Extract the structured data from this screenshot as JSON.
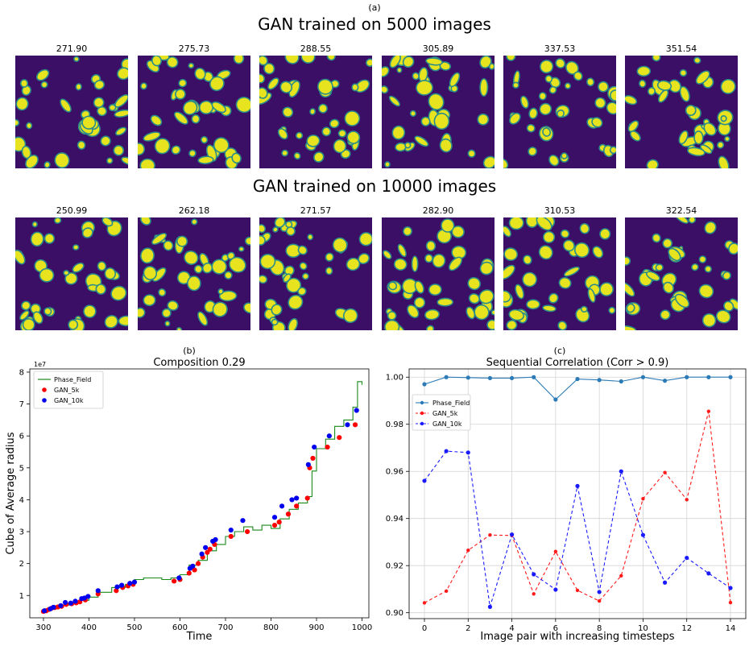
{
  "figure": {
    "label_a": "(a)",
    "label_b": "(b)",
    "label_c": "(c)",
    "row1_title": "GAN trained on 5000 images",
    "row2_title": "GAN trained on 10000 images",
    "row1_scores": [
      "271.90",
      "275.73",
      "288.55",
      "305.89",
      "337.53",
      "351.54"
    ],
    "row2_scores": [
      "250.99",
      "262.18",
      "271.57",
      "282.90",
      "310.53",
      "322.54"
    ]
  },
  "colors": {
    "field_background": "#3b0f66",
    "field_halo": "#2a8c8a",
    "field_particle": "#e8e31f",
    "phase_field_line": "#1a8a1a",
    "gan_5k": "#ff0000",
    "gan_10k": "#0000ee",
    "corr_phase_field": "#2c7bb6",
    "corr_gan_5k": "#ff1a1a",
    "corr_gan_10k": "#1a1aff"
  },
  "chart_data": [
    {
      "type": "line",
      "title": "Composition 0.29",
      "xlabel": "Time",
      "ylabel": "Cube of Average radius",
      "y_scale_label": "1e7",
      "xlim": [
        270,
        1015
      ],
      "ylim": [
        0.3,
        8.1
      ],
      "xticks": [
        300,
        400,
        500,
        600,
        700,
        800,
        900,
        1000
      ],
      "yticks": [
        1,
        2,
        3,
        4,
        5,
        6,
        7,
        8
      ],
      "legend_position": "top-left",
      "grid": false,
      "series": [
        {
          "name": "Phase_Field",
          "kind": "line",
          "x": [
            300,
            320,
            340,
            360,
            380,
            400,
            420,
            450,
            480,
            500,
            520,
            560,
            580,
            600,
            620,
            640,
            660,
            680,
            700,
            720,
            740,
            760,
            780,
            800,
            820,
            840,
            860,
            880,
            890,
            900,
            920,
            940,
            960,
            980,
            990,
            1000
          ],
          "y": [
            0.55,
            0.62,
            0.7,
            0.78,
            0.85,
            0.95,
            1.1,
            1.25,
            1.35,
            1.5,
            1.55,
            1.5,
            1.55,
            1.65,
            1.95,
            2.1,
            2.4,
            2.6,
            2.85,
            3.0,
            3.15,
            3.05,
            3.2,
            3.1,
            3.4,
            3.7,
            3.9,
            4.1,
            4.9,
            5.6,
            5.9,
            6.3,
            6.5,
            6.9,
            7.7,
            7.6
          ]
        },
        {
          "name": "GAN_5k",
          "kind": "scatter",
          "x": [
            300,
            306,
            312,
            318,
            325,
            332,
            340,
            350,
            362,
            372,
            380,
            392,
            420,
            460,
            474,
            486,
            497,
            587,
            600,
            620,
            632,
            640,
            650,
            660,
            666,
            676,
            712,
            748,
            808,
            818,
            838,
            856,
            880,
            885,
            892,
            924,
            950,
            985
          ],
          "y": [
            0.5,
            0.52,
            0.56,
            0.6,
            0.62,
            0.64,
            0.66,
            0.72,
            0.74,
            0.77,
            0.8,
            0.86,
            1.05,
            1.15,
            1.25,
            1.3,
            1.35,
            1.45,
            1.5,
            1.7,
            1.8,
            2.0,
            2.2,
            2.35,
            2.45,
            2.6,
            2.85,
            3.0,
            3.2,
            3.3,
            3.55,
            3.8,
            4.05,
            5.0,
            5.3,
            5.65,
            5.95,
            6.35
          ]
        },
        {
          "name": "GAN_10k",
          "kind": "scatter",
          "x": [
            302,
            315,
            322,
            338,
            348,
            360,
            370,
            384,
            390,
            398,
            420,
            462,
            472,
            490,
            500,
            598,
            622,
            628,
            648,
            656,
            672,
            678,
            712,
            738,
            808,
            824,
            846,
            856,
            882,
            895,
            928,
            968,
            988
          ],
          "y": [
            0.52,
            0.58,
            0.63,
            0.68,
            0.78,
            0.76,
            0.82,
            0.9,
            0.92,
            0.97,
            1.15,
            1.27,
            1.32,
            1.38,
            1.42,
            1.55,
            1.85,
            1.92,
            2.3,
            2.5,
            2.7,
            2.75,
            3.05,
            3.35,
            3.45,
            3.8,
            4.0,
            4.05,
            5.1,
            5.65,
            6.0,
            6.35,
            6.8
          ]
        }
      ]
    },
    {
      "type": "line",
      "title": "Sequential Correlation (Corr > 0.9)",
      "xlabel": "Image pair with increasing timesteps",
      "ylabel": "",
      "xlim": [
        -0.7,
        14.7
      ],
      "ylim": [
        0.8975,
        1.0035
      ],
      "xticks": [
        0,
        2,
        4,
        6,
        8,
        10,
        12,
        14
      ],
      "yticks": [
        "0.90",
        "0.92",
        "0.94",
        "0.96",
        "0.98",
        "1.00"
      ],
      "legend_position": "upper-left",
      "grid": true,
      "x": [
        0,
        1,
        2,
        3,
        4,
        5,
        6,
        7,
        8,
        9,
        10,
        11,
        12,
        13,
        14
      ],
      "series": [
        {
          "name": "Phase_Field",
          "style": "solid",
          "values": [
            0.997,
            1.0,
            0.9998,
            0.9996,
            0.9996,
            1.0,
            0.9905,
            0.9992,
            0.9988,
            0.9982,
            1.0,
            0.9985,
            1.0,
            1.0,
            1.0
          ]
        },
        {
          "name": "GAN_5k",
          "style": "dashed",
          "values": [
            0.9042,
            0.9092,
            0.9265,
            0.933,
            0.9328,
            0.908,
            0.926,
            0.9095,
            0.905,
            0.9157,
            0.9484,
            0.9595,
            0.948,
            0.9855,
            0.9043
          ]
        },
        {
          "name": "GAN_10k",
          "style": "dashed",
          "values": [
            0.956,
            0.9686,
            0.968,
            0.9025,
            0.9332,
            0.9163,
            0.9098,
            0.9538,
            0.9088,
            0.96,
            0.933,
            0.9128,
            0.9233,
            0.9167,
            0.9105
          ]
        }
      ]
    }
  ]
}
